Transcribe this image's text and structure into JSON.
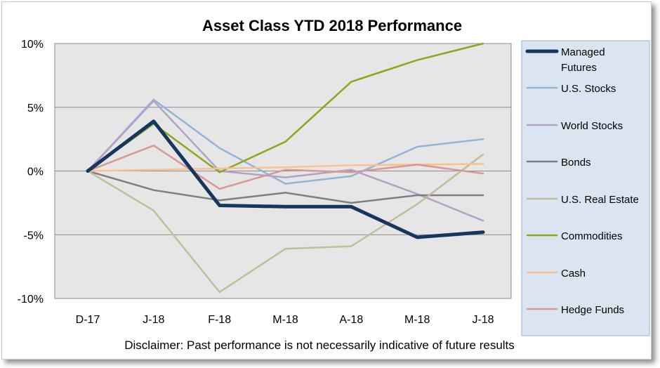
{
  "chart_data": {
    "type": "line",
    "title": "Asset Class YTD 2018 Performance",
    "categories": [
      "D-17",
      "J-18",
      "F-18",
      "M-18",
      "A-18",
      "M-18",
      "J-18"
    ],
    "ylim": [
      -10,
      10
    ],
    "y_ticks": [
      10,
      5,
      0,
      -5,
      -10
    ],
    "y_tick_labels": [
      "10%",
      "5%",
      "0%",
      "-5%",
      "-10%"
    ],
    "grid": true,
    "legend_position": "right",
    "series": [
      {
        "name": "Managed Futures",
        "name_lines": [
          "Managed",
          "Futures"
        ],
        "color": "#17365d",
        "width": 5,
        "values": [
          0,
          3.9,
          -2.7,
          -2.8,
          -2.8,
          -5.2,
          -4.8
        ]
      },
      {
        "name": "U.S. Stocks",
        "color": "#95b3d7",
        "width": 2.5,
        "values": [
          0,
          5.6,
          1.8,
          -1.0,
          -0.4,
          1.9,
          2.5
        ]
      },
      {
        "name": "World Stocks",
        "color": "#b3a2c7",
        "width": 2.5,
        "values": [
          0,
          5.5,
          0.0,
          -0.5,
          0.1,
          -1.8,
          -3.9
        ]
      },
      {
        "name": "Bonds",
        "color": "#7f7f7f",
        "width": 2.5,
        "values": [
          0,
          -1.5,
          -2.3,
          -1.7,
          -2.5,
          -1.9,
          -1.9
        ]
      },
      {
        "name": "U.S. Real Estate",
        "color": "#c4bd97",
        "width": 2.5,
        "values": [
          0,
          -3.1,
          -9.5,
          -6.1,
          -5.9,
          -2.6,
          1.3
        ]
      },
      {
        "name": "Commodities",
        "color": "#8ba71b",
        "width": 2.5,
        "values": [
          0,
          3.7,
          -0.1,
          2.3,
          7.0,
          8.7,
          10.0
        ]
      },
      {
        "name": "Cash",
        "color": "#fac090",
        "width": 2.5,
        "values": [
          0,
          0.1,
          0.2,
          0.3,
          0.45,
          0.5,
          0.55
        ]
      },
      {
        "name": "Hedge Funds",
        "color": "#d99795",
        "width": 2.5,
        "values": [
          0,
          2.0,
          -1.4,
          0.1,
          -0.1,
          0.5,
          -0.2
        ]
      }
    ],
    "colors": {
      "plot_background": "#e6e6e6",
      "legend_background": "#dbe5f1",
      "legend_border": "#95b3d7",
      "grid": "#8c8c8c"
    }
  },
  "disclaimer": "Disclaimer: Past performance is not necessarily indicative of future results"
}
